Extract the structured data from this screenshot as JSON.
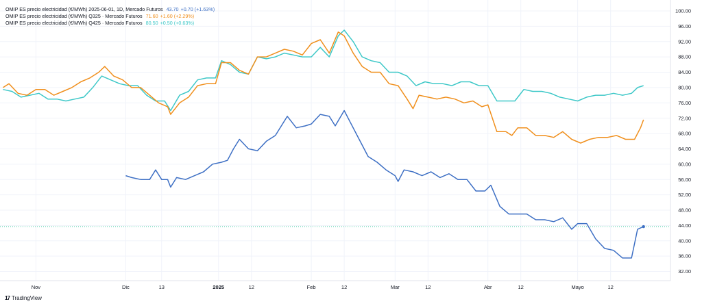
{
  "legend": [
    {
      "label": "OMIP ES precio electricidad (€/MWh) 2025-06-01, 1D, Mercado Futuros",
      "value": "43.70",
      "change": "+0.70 (+1.63%)",
      "color": "#3d6fc4"
    },
    {
      "label": "OMIP ES precio electricidad (€/MWh) Q325 · Mercado Futuros",
      "value": "71.60",
      "change": "+1.60 (+2.29%)",
      "color": "#f08f1c"
    },
    {
      "label": "OMIP ES precio electricidad (€/MWh) Q425 · Mercado Futuros",
      "value": "80.50",
      "change": "+0.50 (+0.63%)",
      "color": "#3ec8c8"
    }
  ],
  "brand": {
    "name": "TradingView",
    "icon": "tradingview-logo-icon"
  },
  "chart_data": {
    "type": "line",
    "ylim": [
      30,
      101
    ],
    "yticks": [
      "100.00",
      "96.00",
      "92.00",
      "88.00",
      "84.00",
      "80.00",
      "76.00",
      "72.00",
      "68.00",
      "64.00",
      "60.00",
      "56.00",
      "52.00",
      "48.00",
      "44.00",
      "40.00",
      "36.00",
      "32.00"
    ],
    "xticks": [
      {
        "label": "Nov",
        "date": "2024-11-01",
        "bold": false
      },
      {
        "label": "Dic",
        "date": "2024-12-01",
        "bold": false
      },
      {
        "label": "13",
        "date": "2024-12-13",
        "bold": false
      },
      {
        "label": "2025",
        "date": "2025-01-01",
        "bold": true
      },
      {
        "label": "12",
        "date": "2025-01-12",
        "bold": false
      },
      {
        "label": "Feb",
        "date": "2025-02-01",
        "bold": false
      },
      {
        "label": "12",
        "date": "2025-02-12",
        "bold": false
      },
      {
        "label": "Mar",
        "date": "2025-03-01",
        "bold": false
      },
      {
        "label": "12",
        "date": "2025-03-12",
        "bold": false
      },
      {
        "label": "Abr",
        "date": "2025-04-01",
        "bold": false
      },
      {
        "label": "12",
        "date": "2025-04-12",
        "bold": false
      },
      {
        "label": "Mayo",
        "date": "2025-05-01",
        "bold": false
      },
      {
        "label": "12",
        "date": "2025-05-12",
        "bold": false
      }
    ],
    "xrange": [
      "2024-10-20",
      "2025-06-01"
    ],
    "last_price_line": 43.7,
    "series": [
      {
        "name": "OMIP ES precio electricidad (€/MWh) Q425 · Mercado Futuros",
        "color": "#3ec8c8",
        "points": [
          [
            "2024-10-21",
            79.5
          ],
          [
            "2024-10-24",
            79.0
          ],
          [
            "2024-10-27",
            77.5
          ],
          [
            "2024-10-30",
            78.0
          ],
          [
            "2024-11-02",
            78.5
          ],
          [
            "2024-11-05",
            77.0
          ],
          [
            "2024-11-08",
            77.0
          ],
          [
            "2024-11-11",
            76.5
          ],
          [
            "2024-11-14",
            77.0
          ],
          [
            "2024-11-17",
            77.5
          ],
          [
            "2024-11-20",
            80.0
          ],
          [
            "2024-11-23",
            83.0
          ],
          [
            "2024-11-26",
            82.0
          ],
          [
            "2024-11-29",
            81.0
          ],
          [
            "2024-12-02",
            80.5
          ],
          [
            "2024-12-05",
            80.5
          ],
          [
            "2024-12-08",
            78.0
          ],
          [
            "2024-12-11",
            76.5
          ],
          [
            "2024-12-14",
            76.5
          ],
          [
            "2024-12-16",
            74.0
          ],
          [
            "2024-12-19",
            78.0
          ],
          [
            "2024-12-22",
            79.0
          ],
          [
            "2024-12-25",
            82.0
          ],
          [
            "2024-12-28",
            82.5
          ],
          [
            "2024-12-31",
            82.5
          ],
          [
            "2025-01-02",
            87.0
          ],
          [
            "2025-01-05",
            86.0
          ],
          [
            "2025-01-08",
            84.0
          ],
          [
            "2025-01-11",
            83.5
          ],
          [
            "2025-01-14",
            88.0
          ],
          [
            "2025-01-17",
            87.5
          ],
          [
            "2025-01-20",
            88.0
          ],
          [
            "2025-01-23",
            89.0
          ],
          [
            "2025-01-26",
            88.5
          ],
          [
            "2025-01-29",
            88.0
          ],
          [
            "2025-02-01",
            88.0
          ],
          [
            "2025-02-04",
            90.5
          ],
          [
            "2025-02-07",
            88.0
          ],
          [
            "2025-02-10",
            93.5
          ],
          [
            "2025-02-12",
            95.0
          ],
          [
            "2025-02-15",
            92.0
          ],
          [
            "2025-02-18",
            88.0
          ],
          [
            "2025-02-21",
            87.0
          ],
          [
            "2025-02-24",
            86.5
          ],
          [
            "2025-02-27",
            84.0
          ],
          [
            "2025-03-02",
            84.0
          ],
          [
            "2025-03-05",
            83.0
          ],
          [
            "2025-03-08",
            80.5
          ],
          [
            "2025-03-11",
            81.5
          ],
          [
            "2025-03-14",
            81.0
          ],
          [
            "2025-03-17",
            81.0
          ],
          [
            "2025-03-20",
            80.5
          ],
          [
            "2025-03-23",
            81.5
          ],
          [
            "2025-03-26",
            81.5
          ],
          [
            "2025-03-29",
            80.5
          ],
          [
            "2025-04-01",
            80.5
          ],
          [
            "2025-04-04",
            76.5
          ],
          [
            "2025-04-07",
            76.5
          ],
          [
            "2025-04-10",
            76.5
          ],
          [
            "2025-04-13",
            79.5
          ],
          [
            "2025-04-16",
            79.0
          ],
          [
            "2025-04-19",
            79.0
          ],
          [
            "2025-04-22",
            78.5
          ],
          [
            "2025-04-25",
            77.5
          ],
          [
            "2025-04-28",
            77.0
          ],
          [
            "2025-05-01",
            76.5
          ],
          [
            "2025-05-04",
            77.5
          ],
          [
            "2025-05-07",
            78.0
          ],
          [
            "2025-05-10",
            78.0
          ],
          [
            "2025-05-13",
            78.5
          ],
          [
            "2025-05-16",
            78.0
          ],
          [
            "2025-05-19",
            78.5
          ],
          [
            "2025-05-21",
            80.0
          ],
          [
            "2025-05-23",
            80.5
          ]
        ]
      },
      {
        "name": "OMIP ES precio electricidad (€/MWh) Q325 · Mercado Futuros",
        "color": "#f08f1c",
        "points": [
          [
            "2024-10-21",
            80.0
          ],
          [
            "2024-10-23",
            81.0
          ],
          [
            "2024-10-26",
            78.5
          ],
          [
            "2024-10-29",
            78.0
          ],
          [
            "2024-11-01",
            79.5
          ],
          [
            "2024-11-04",
            79.5
          ],
          [
            "2024-11-07",
            78.0
          ],
          [
            "2024-11-10",
            79.0
          ],
          [
            "2024-11-13",
            80.0
          ],
          [
            "2024-11-16",
            81.5
          ],
          [
            "2024-11-19",
            82.5
          ],
          [
            "2024-11-22",
            84.0
          ],
          [
            "2024-11-24",
            85.5
          ],
          [
            "2024-11-27",
            83.0
          ],
          [
            "2024-11-30",
            82.0
          ],
          [
            "2024-12-03",
            80.0
          ],
          [
            "2024-12-06",
            80.0
          ],
          [
            "2024-12-09",
            78.0
          ],
          [
            "2024-12-12",
            76.0
          ],
          [
            "2024-12-15",
            75.0
          ],
          [
            "2024-12-16",
            73.0
          ],
          [
            "2024-12-19",
            76.0
          ],
          [
            "2024-12-22",
            77.5
          ],
          [
            "2024-12-25",
            80.5
          ],
          [
            "2024-12-28",
            81.0
          ],
          [
            "2024-12-31",
            81.0
          ],
          [
            "2025-01-02",
            86.5
          ],
          [
            "2025-01-05",
            86.5
          ],
          [
            "2025-01-08",
            84.5
          ],
          [
            "2025-01-11",
            83.5
          ],
          [
            "2025-01-14",
            88.0
          ],
          [
            "2025-01-17",
            88.0
          ],
          [
            "2025-01-20",
            89.0
          ],
          [
            "2025-01-23",
            90.0
          ],
          [
            "2025-01-26",
            89.5
          ],
          [
            "2025-01-29",
            88.5
          ],
          [
            "2025-02-01",
            91.5
          ],
          [
            "2025-02-04",
            92.5
          ],
          [
            "2025-02-07",
            89.0
          ],
          [
            "2025-02-10",
            94.5
          ],
          [
            "2025-02-12",
            93.5
          ],
          [
            "2025-02-15",
            89.0
          ],
          [
            "2025-02-18",
            85.5
          ],
          [
            "2025-02-21",
            84.0
          ],
          [
            "2025-02-24",
            84.0
          ],
          [
            "2025-02-27",
            81.0
          ],
          [
            "2025-03-02",
            80.5
          ],
          [
            "2025-03-05",
            77.0
          ],
          [
            "2025-03-07",
            74.5
          ],
          [
            "2025-03-09",
            78.0
          ],
          [
            "2025-03-12",
            77.5
          ],
          [
            "2025-03-15",
            77.0
          ],
          [
            "2025-03-18",
            77.5
          ],
          [
            "2025-03-21",
            77.0
          ],
          [
            "2025-03-24",
            76.0
          ],
          [
            "2025-03-27",
            76.5
          ],
          [
            "2025-03-30",
            75.0
          ],
          [
            "2025-04-01",
            75.5
          ],
          [
            "2025-04-04",
            68.5
          ],
          [
            "2025-04-07",
            68.5
          ],
          [
            "2025-04-09",
            67.5
          ],
          [
            "2025-04-11",
            69.5
          ],
          [
            "2025-04-14",
            69.5
          ],
          [
            "2025-04-17",
            67.5
          ],
          [
            "2025-04-20",
            67.5
          ],
          [
            "2025-04-23",
            67.0
          ],
          [
            "2025-04-26",
            68.5
          ],
          [
            "2025-04-29",
            66.5
          ],
          [
            "2025-05-02",
            65.5
          ],
          [
            "2025-05-05",
            66.5
          ],
          [
            "2025-05-08",
            67.0
          ],
          [
            "2025-05-11",
            67.0
          ],
          [
            "2025-05-14",
            67.5
          ],
          [
            "2025-05-17",
            66.5
          ],
          [
            "2025-05-20",
            66.5
          ],
          [
            "2025-05-22",
            69.5
          ],
          [
            "2025-05-23",
            71.6
          ]
        ]
      },
      {
        "name": "OMIP ES precio electricidad (€/MWh) 2025-06-01, 1D, Mercado Futuros",
        "color": "#3d6fc4",
        "points": [
          [
            "2024-12-01",
            57.0
          ],
          [
            "2024-12-03",
            56.5
          ],
          [
            "2024-12-06",
            56.0
          ],
          [
            "2024-12-09",
            56.0
          ],
          [
            "2024-12-11",
            58.5
          ],
          [
            "2024-12-13",
            56.0
          ],
          [
            "2024-12-15",
            56.0
          ],
          [
            "2024-12-16",
            54.0
          ],
          [
            "2024-12-18",
            56.5
          ],
          [
            "2024-12-21",
            56.0
          ],
          [
            "2024-12-24",
            57.0
          ],
          [
            "2024-12-27",
            58.0
          ],
          [
            "2024-12-30",
            60.0
          ],
          [
            "2025-01-02",
            60.5
          ],
          [
            "2025-01-04",
            61.0
          ],
          [
            "2025-01-06",
            64.0
          ],
          [
            "2025-01-08",
            66.5
          ],
          [
            "2025-01-11",
            64.0
          ],
          [
            "2025-01-14",
            63.5
          ],
          [
            "2025-01-17",
            66.0
          ],
          [
            "2025-01-20",
            67.5
          ],
          [
            "2025-01-22",
            70.0
          ],
          [
            "2025-01-24",
            72.5
          ],
          [
            "2025-01-27",
            69.5
          ],
          [
            "2025-01-30",
            70.0
          ],
          [
            "2025-02-01",
            70.5
          ],
          [
            "2025-02-04",
            73.0
          ],
          [
            "2025-02-07",
            72.5
          ],
          [
            "2025-02-09",
            70.0
          ],
          [
            "2025-02-12",
            74.0
          ],
          [
            "2025-02-14",
            71.0
          ],
          [
            "2025-02-17",
            66.5
          ],
          [
            "2025-02-20",
            62.0
          ],
          [
            "2025-02-23",
            60.5
          ],
          [
            "2025-02-26",
            58.5
          ],
          [
            "2025-03-01",
            57.0
          ],
          [
            "2025-03-02",
            55.5
          ],
          [
            "2025-03-04",
            58.5
          ],
          [
            "2025-03-07",
            58.0
          ],
          [
            "2025-03-10",
            57.0
          ],
          [
            "2025-03-13",
            58.0
          ],
          [
            "2025-03-16",
            56.5
          ],
          [
            "2025-03-19",
            57.5
          ],
          [
            "2025-03-22",
            56.0
          ],
          [
            "2025-03-25",
            56.0
          ],
          [
            "2025-03-28",
            53.0
          ],
          [
            "2025-03-31",
            53.0
          ],
          [
            "2025-04-02",
            54.5
          ],
          [
            "2025-04-05",
            49.0
          ],
          [
            "2025-04-08",
            47.0
          ],
          [
            "2025-04-11",
            47.0
          ],
          [
            "2025-04-14",
            47.0
          ],
          [
            "2025-04-17",
            45.5
          ],
          [
            "2025-04-20",
            45.5
          ],
          [
            "2025-04-23",
            45.0
          ],
          [
            "2025-04-26",
            46.0
          ],
          [
            "2025-04-29",
            43.0
          ],
          [
            "2025-05-01",
            44.5
          ],
          [
            "2025-05-04",
            44.5
          ],
          [
            "2025-05-07",
            40.5
          ],
          [
            "2025-05-10",
            38.0
          ],
          [
            "2025-05-13",
            37.5
          ],
          [
            "2025-05-16",
            35.5
          ],
          [
            "2025-05-19",
            35.5
          ],
          [
            "2025-05-21",
            43.0
          ],
          [
            "2025-05-23",
            43.7
          ]
        ]
      }
    ]
  }
}
